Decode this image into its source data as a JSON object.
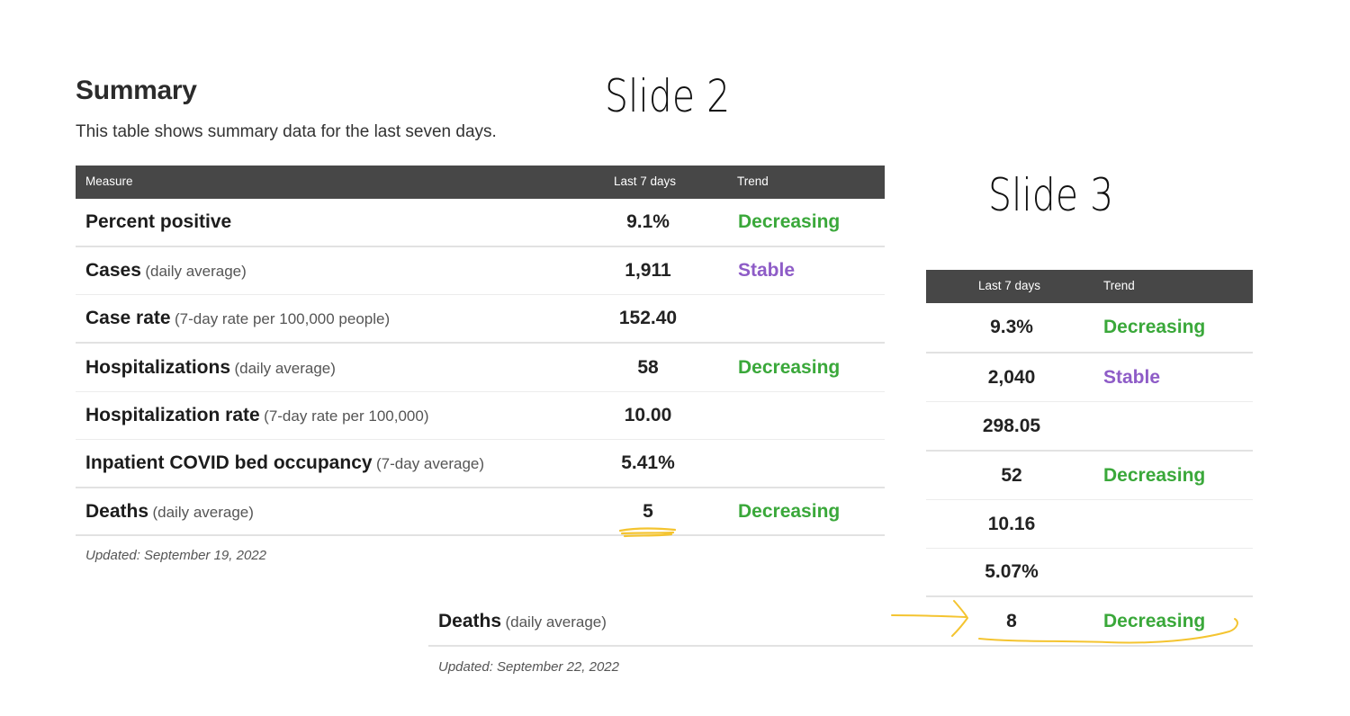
{
  "summary": {
    "title": "Summary",
    "subtitle": "This table shows summary data for the last seven days."
  },
  "slide2": {
    "label": "Slide 2",
    "header": {
      "measure": "Measure",
      "last7": "Last 7 days",
      "trend": "Trend"
    },
    "rows": [
      {
        "name": "Percent positive",
        "qualifier": "",
        "value": "9.1%",
        "trend": "Decreasing"
      },
      {
        "name": "Cases",
        "qualifier": "(daily average)",
        "value": "1,911",
        "trend": "Stable"
      },
      {
        "name": "Case rate",
        "qualifier": "(7-day rate per 100,000 people)",
        "value": "152.40",
        "trend": ""
      },
      {
        "name": "Hospitalizations",
        "qualifier": "(daily average)",
        "value": "58",
        "trend": "Decreasing"
      },
      {
        "name": "Hospitalization rate",
        "qualifier": "(7-day rate per 100,000)",
        "value": "10.00",
        "trend": ""
      },
      {
        "name": "Inpatient COVID bed occupancy",
        "qualifier": "(7-day average)",
        "value": "5.41%",
        "trend": ""
      },
      {
        "name": "Deaths",
        "qualifier": "(daily average)",
        "value": "5",
        "trend": "Decreasing"
      }
    ],
    "updated": "Updated: September 19, 2022"
  },
  "slide3": {
    "label": "Slide 3",
    "header": {
      "last7": "Last 7 days",
      "trend": "Trend"
    },
    "rows": [
      {
        "value": "9.3%",
        "trend": "Decreasing"
      },
      {
        "value": "2,040",
        "trend": "Stable"
      },
      {
        "value": "298.05",
        "trend": ""
      },
      {
        "value": "52",
        "trend": "Decreasing"
      },
      {
        "value": "10.16",
        "trend": ""
      },
      {
        "value": "5.07%",
        "trend": ""
      }
    ],
    "deaths_row": {
      "name": "Deaths",
      "qualifier": "(daily average)",
      "value": "8",
      "trend": "Decreasing"
    },
    "updated": "Updated: September 22, 2022"
  },
  "colors": {
    "header_bg": "#474747",
    "decreasing": "#3aa83a",
    "stable": "#8e5cc7",
    "highlight": "#f4c430"
  }
}
